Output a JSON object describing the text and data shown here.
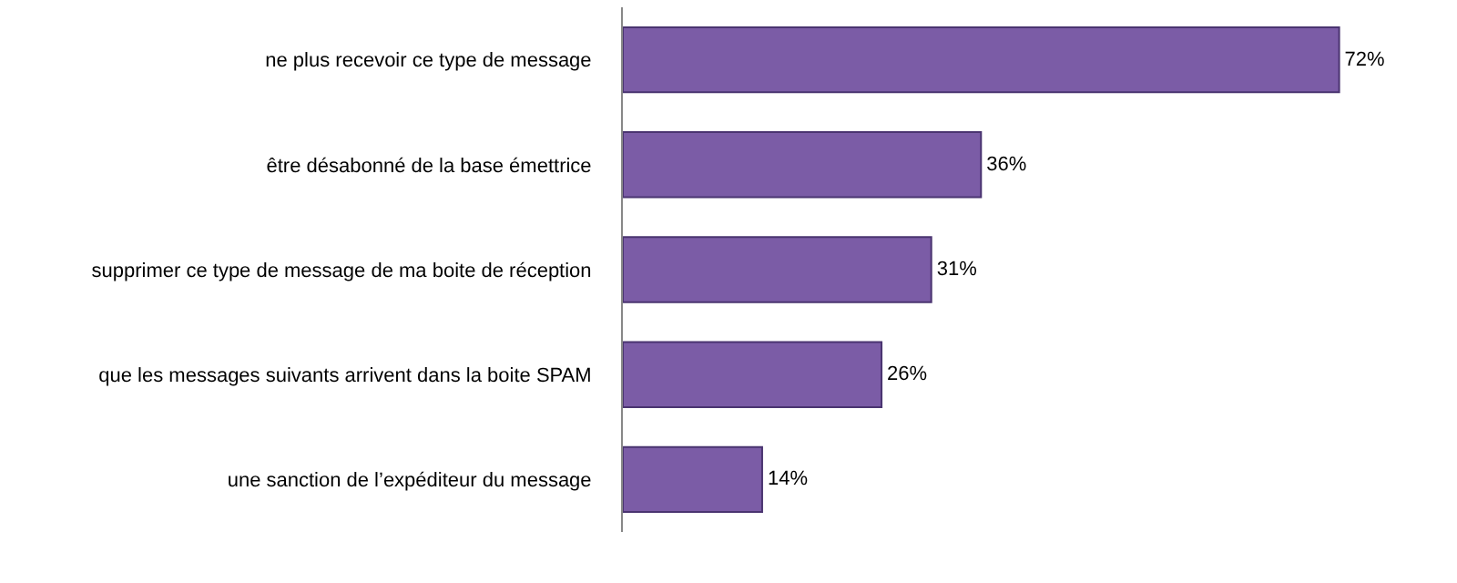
{
  "chart_data": {
    "type": "bar",
    "orientation": "horizontal",
    "categories": [
      "ne plus recevoir ce type de message",
      "être désabonné de la base émettrice",
      "supprimer ce type de message de ma boite de réception",
      "que les messages suivants arrivent dans la boite SPAM",
      "une sanction de l’expéditeur du message"
    ],
    "values": [
      72,
      36,
      31,
      26,
      14
    ],
    "value_labels": [
      "72%",
      "36%",
      "31%",
      "26%",
      "14%"
    ],
    "color": "#7b5ca6",
    "grid": false,
    "legend": false
  }
}
